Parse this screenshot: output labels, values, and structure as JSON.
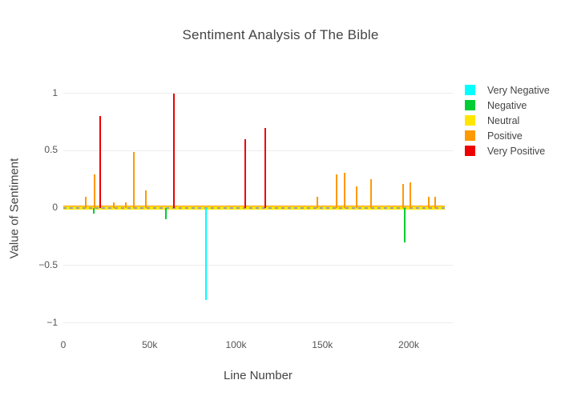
{
  "title": "Sentiment Analysis of The Bible",
  "x_axis": {
    "label": "Line Number",
    "ticks": [
      {
        "label": "0",
        "value": 0
      },
      {
        "label": "50k",
        "value": 50000
      },
      {
        "label": "100k",
        "value": 100000
      },
      {
        "label": "150k",
        "value": 150000
      },
      {
        "label": "200k",
        "value": 200000
      }
    ]
  },
  "y_axis": {
    "label": "Value of Sentiment",
    "ticks": [
      {
        "label": "1",
        "value": 1
      },
      {
        "label": "0.5",
        "value": 0.5
      },
      {
        "label": "0",
        "value": 0
      },
      {
        "label": "−0.5",
        "value": -0.5
      },
      {
        "label": "−1",
        "value": -1
      }
    ],
    "grid_values": [
      1,
      0.5,
      -0.5,
      -1
    ]
  },
  "legend": {
    "items": [
      {
        "label": "Very Negative",
        "color": "#00ffff"
      },
      {
        "label": "Negative",
        "color": "#00cc33"
      },
      {
        "label": "Neutral",
        "color": "#ffe600"
      },
      {
        "label": "Positive",
        "color": "#ff9900"
      },
      {
        "label": "Very Positive",
        "color": "#ee0000"
      }
    ]
  },
  "chart_data": {
    "type": "bar",
    "title": "Sentiment Analysis of The Bible",
    "xlabel": "Line Number",
    "ylabel": "Value of Sentiment",
    "xlim": [
      0,
      225000
    ],
    "ylim": [
      -1,
      1
    ],
    "grid": true,
    "legend_position": "right",
    "zero_line": "dashed gray over dense neutral band",
    "neutral_band": {
      "series": "Neutral",
      "y": 0,
      "x_start": 0,
      "x_end": 221000,
      "note": "dense cluster of near-zero Neutral values forming a solid yellow band along y=0"
    },
    "series": [
      {
        "name": "Very Negative",
        "color": "#00ffff",
        "points": [
          {
            "x": 82500,
            "y": -0.8
          }
        ]
      },
      {
        "name": "Negative",
        "color": "#00cc33",
        "points": [
          {
            "x": 17500,
            "y": -0.05
          },
          {
            "x": 59500,
            "y": -0.1
          },
          {
            "x": 197800,
            "y": -0.3
          }
        ]
      },
      {
        "name": "Neutral",
        "color": "#ffe600",
        "points": []
      },
      {
        "name": "Positive",
        "color": "#ff9900",
        "points": [
          {
            "x": 13000,
            "y": 0.1
          },
          {
            "x": 18300,
            "y": 0.29
          },
          {
            "x": 29000,
            "y": 0.05
          },
          {
            "x": 36300,
            "y": 0.05
          },
          {
            "x": 41000,
            "y": 0.49
          },
          {
            "x": 48000,
            "y": 0.15
          },
          {
            "x": 147000,
            "y": 0.1
          },
          {
            "x": 158200,
            "y": 0.29
          },
          {
            "x": 163000,
            "y": 0.31
          },
          {
            "x": 170000,
            "y": 0.19
          },
          {
            "x": 178000,
            "y": 0.25
          },
          {
            "x": 196800,
            "y": 0.21
          },
          {
            "x": 200800,
            "y": 0.22
          },
          {
            "x": 211800,
            "y": 0.1
          },
          {
            "x": 215500,
            "y": 0.1
          }
        ]
      },
      {
        "name": "Very Positive",
        "color": "#ee0000",
        "points": [
          {
            "x": 21500,
            "y": 0.8
          },
          {
            "x": 64000,
            "y": 1.0
          },
          {
            "x": 105500,
            "y": 0.6
          },
          {
            "x": 117000,
            "y": 0.7
          }
        ]
      }
    ]
  }
}
